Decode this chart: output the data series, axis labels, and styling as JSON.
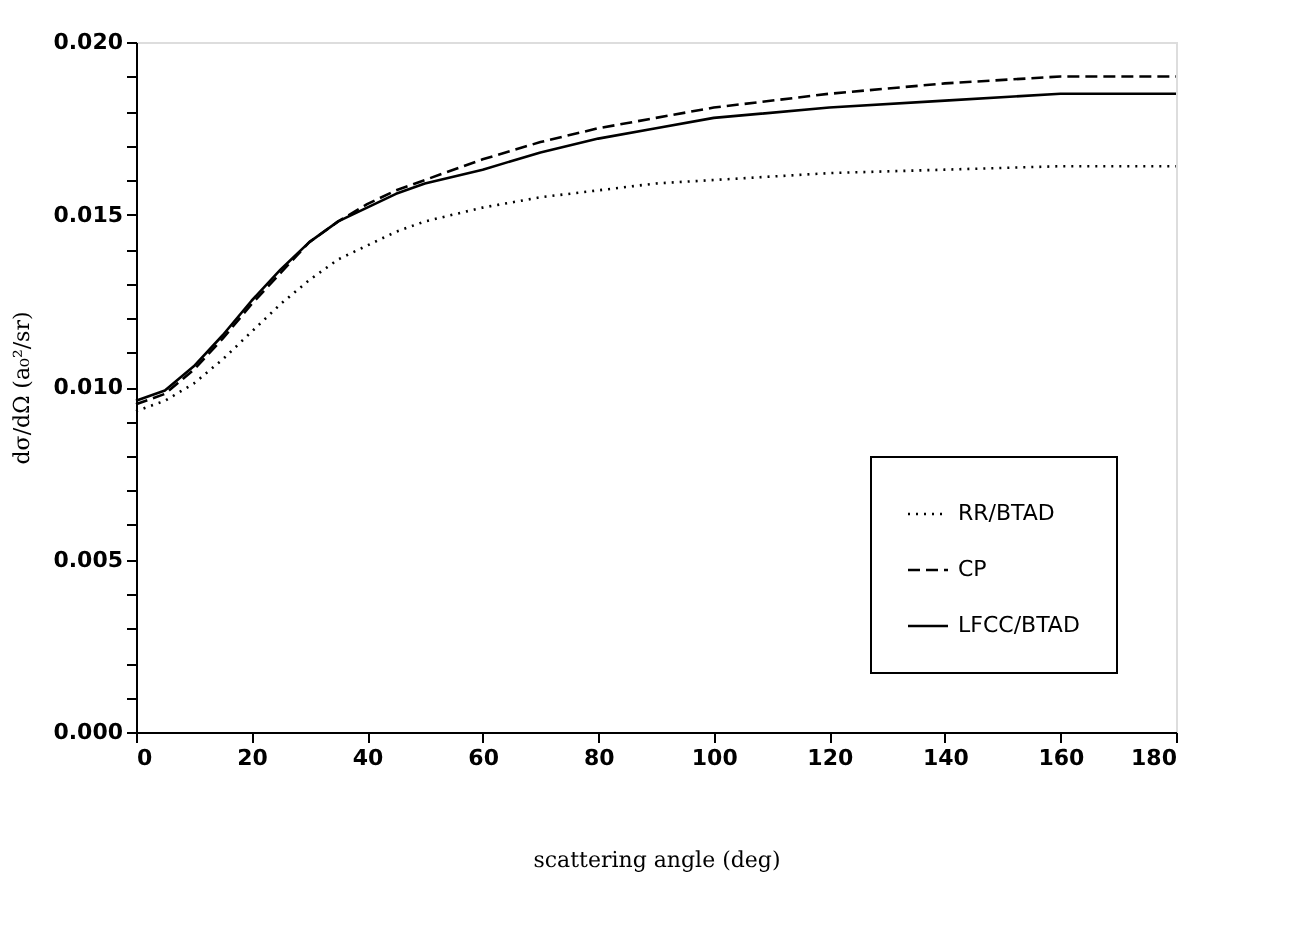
{
  "chart_data": {
    "type": "line",
    "xlabel": "scattering angle (deg)",
    "ylabel": "dσ/dΩ (a₀²/sr)",
    "x": [
      0,
      5,
      10,
      15,
      20,
      25,
      30,
      35,
      40,
      45,
      50,
      60,
      70,
      80,
      90,
      100,
      120,
      140,
      160,
      180
    ],
    "series": [
      {
        "name": "RR/BTAD",
        "color": "#000000",
        "line_style": "dotted",
        "values": [
          0.0093,
          0.0096,
          0.0101,
          0.0108,
          0.0116,
          0.0124,
          0.0131,
          0.0137,
          0.0141,
          0.0145,
          0.0148,
          0.0152,
          0.0155,
          0.0157,
          0.0159,
          0.016,
          0.0162,
          0.0163,
          0.0164,
          0.0164
        ]
      },
      {
        "name": "CP",
        "color": "#000000",
        "line_style": "dashed",
        "values": [
          0.0095,
          0.0098,
          0.0105,
          0.0114,
          0.0124,
          0.0133,
          0.0142,
          0.0148,
          0.0153,
          0.0157,
          0.016,
          0.0166,
          0.0171,
          0.0175,
          0.0178,
          0.0181,
          0.0185,
          0.0188,
          0.019,
          0.019
        ]
      },
      {
        "name": "LFCC/BTAD",
        "color": "#000000",
        "line_style": "solid",
        "values": [
          0.0096,
          0.0099,
          0.0106,
          0.0115,
          0.0125,
          0.0134,
          0.0142,
          0.0148,
          0.0152,
          0.0156,
          0.0159,
          0.0163,
          0.0168,
          0.0172,
          0.0175,
          0.0178,
          0.0181,
          0.0183,
          0.0185,
          0.0185
        ]
      }
    ],
    "xlim": [
      0,
      180
    ],
    "xticks": [
      0,
      20,
      40,
      60,
      80,
      100,
      120,
      140,
      160,
      180
    ],
    "ylim": [
      0,
      0.02
    ],
    "yticks": [
      {
        "value": 0,
        "label": "0.000"
      },
      {
        "value": 0.001,
        "label": null
      },
      {
        "value": 0.002,
        "label": null
      },
      {
        "value": 0.003,
        "label": null
      },
      {
        "value": 0.004,
        "label": null
      },
      {
        "value": 0.005,
        "label": "0.005"
      },
      {
        "value": 0.006,
        "label": null
      },
      {
        "value": 0.007,
        "label": null
      },
      {
        "value": 0.008,
        "label": null
      },
      {
        "value": 0.009,
        "label": null
      },
      {
        "value": 0.01,
        "label": "0.010"
      },
      {
        "value": 0.011,
        "label": null
      },
      {
        "value": 0.012,
        "label": null
      },
      {
        "value": 0.013,
        "label": null
      },
      {
        "value": 0.014,
        "label": null
      },
      {
        "value": 0.015,
        "label": "0.015"
      },
      {
        "value": 0.016,
        "label": null
      },
      {
        "value": 0.017,
        "label": null
      },
      {
        "value": 0.018,
        "label": null
      },
      {
        "value": 0.019,
        "label": null
      },
      {
        "value": 0.02,
        "label": "0.020"
      }
    ],
    "grid": false,
    "legend": "bottom right",
    "marker": "none"
  }
}
